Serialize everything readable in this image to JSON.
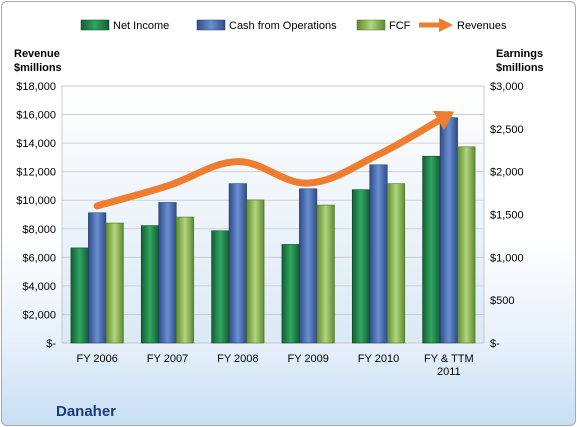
{
  "chart_data": {
    "type": "bar",
    "categories": [
      "FY 2006",
      "FY 2007",
      "FY 2008",
      "FY 2009",
      "FY 2010",
      "FY & TTM|2011"
    ],
    "series": [
      {
        "name": "Net Income",
        "axis": "right",
        "values": [
          1110,
          1370,
          1310,
          1150,
          1790,
          2180
        ],
        "color": "#1e8a4c"
      },
      {
        "name": "Cash from Operations",
        "axis": "right",
        "values": [
          1520,
          1640,
          1860,
          1800,
          2080,
          2630
        ],
        "color": "#4a6fb5"
      },
      {
        "name": "FCF",
        "axis": "right",
        "values": [
          1400,
          1470,
          1670,
          1610,
          1860,
          2290
        ],
        "color": "#8fbf5a"
      }
    ],
    "line_series": {
      "name": "Revenues",
      "axis": "left",
      "type": "line",
      "values": [
        9600,
        11000,
        12700,
        11200,
        13200,
        16000
      ],
      "color": "#ee7d30"
    },
    "left_axis": {
      "title_line1": "Revenue",
      "title_line2": "$millions",
      "range": [
        0,
        18000
      ],
      "ticks": [
        "$-",
        "$2,000",
        "$4,000",
        "$6,000",
        "$8,000",
        "$10,000",
        "$12,000",
        "$14,000",
        "$16,000",
        "$18,000"
      ]
    },
    "right_axis": {
      "title_line1": "Earnings",
      "title_line2": "$millions",
      "range": [
        0,
        3000
      ],
      "ticks": [
        "$-",
        "$500",
        "$1,000",
        "$1,500",
        "$2,000",
        "$2,500",
        "$3,000"
      ]
    },
    "grid": true,
    "legend_position": "top"
  },
  "company_name": "Danaher"
}
